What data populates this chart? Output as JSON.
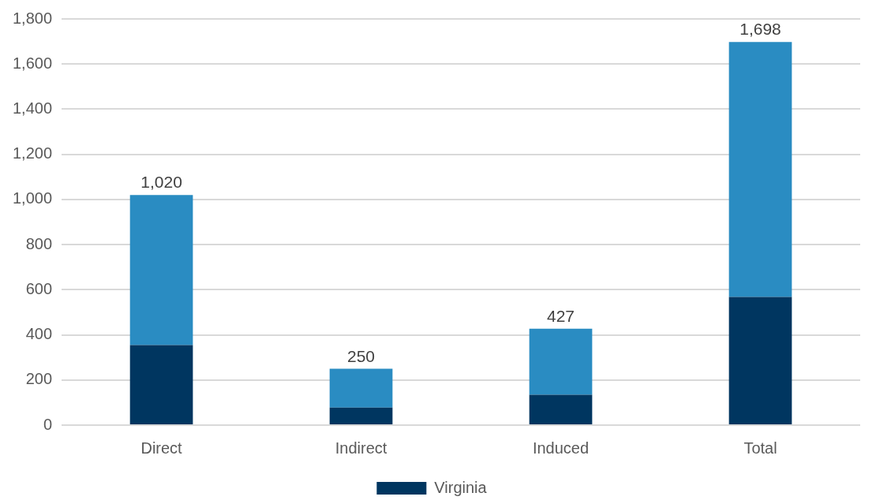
{
  "chart_data": {
    "type": "bar",
    "stacked": true,
    "categories": [
      "Direct",
      "Indirect",
      "Induced",
      "Total"
    ],
    "series": [
      {
        "name": "Virginia",
        "color": "#003660",
        "values": [
          355,
          78,
          135,
          568
        ]
      },
      {
        "color": "#2a8cc2",
        "values": [
          665,
          172,
          292,
          1130
        ]
      }
    ],
    "totals": [
      "1,020",
      "250",
      "427",
      "1,698"
    ],
    "ylim": [
      0,
      1800
    ],
    "yticks": [
      0,
      200,
      400,
      600,
      800,
      {
        "value": 1000,
        "label": "1,000"
      },
      {
        "value": 1200,
        "label": "1,200"
      },
      {
        "value": 1400,
        "label": "1,400"
      },
      {
        "value": 1600,
        "label": "1,600"
      },
      {
        "value": 1800,
        "label": "1,800"
      }
    ],
    "grid": "y",
    "legend": "bottom"
  }
}
